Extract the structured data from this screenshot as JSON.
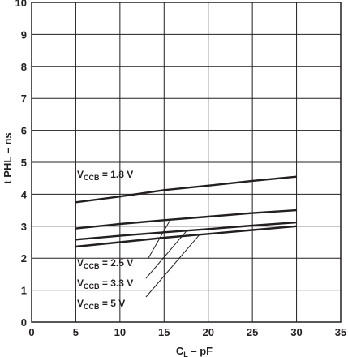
{
  "chart_data": {
    "type": "line",
    "xlabel": "C",
    "xlabel_sub": "L",
    "xlabel_suffix": " – pF",
    "ylabel": "t PHL – ns",
    "xlim": [
      0,
      35
    ],
    "ylim": [
      0,
      10
    ],
    "xticks": [
      "0",
      "5",
      "10",
      "15",
      "20",
      "25",
      "30",
      "35"
    ],
    "yticks": [
      "0",
      "1",
      "2",
      "3",
      "4",
      "5",
      "6",
      "7",
      "8",
      "9",
      "10"
    ],
    "grid": true,
    "series": [
      {
        "name": "V_CCB = 1.8 V",
        "x": [
          5,
          10,
          15,
          20,
          25,
          30
        ],
        "y": [
          3.75,
          3.93,
          4.13,
          4.27,
          4.42,
          4.55
        ],
        "label": {
          "main": "V",
          "sub": "CCB",
          "rest": " = 1.8 V"
        }
      },
      {
        "name": "V_CCB = 2.5 V",
        "x": [
          5,
          10,
          15,
          20,
          25,
          30
        ],
        "y": [
          2.93,
          3.07,
          3.19,
          3.3,
          3.41,
          3.5
        ],
        "label": {
          "main": "V",
          "sub": "CCB",
          "rest": " = 2.5 V"
        }
      },
      {
        "name": "V_CCB = 3.3 V",
        "x": [
          5,
          10,
          15,
          20,
          25,
          30
        ],
        "y": [
          2.58,
          2.7,
          2.81,
          2.91,
          3.02,
          3.12
        ],
        "label": {
          "main": "V",
          "sub": "CCB",
          "rest": " = 3.3 V"
        }
      },
      {
        "name": "V_CCB = 5 V",
        "x": [
          5,
          10,
          15,
          20,
          25,
          30
        ],
        "y": [
          2.36,
          2.5,
          2.64,
          2.76,
          2.88,
          3.0
        ],
        "label": {
          "main": "V",
          "sub": "CCB",
          "rest": " = 5 V"
        }
      }
    ]
  },
  "colors": {
    "grid": "#231f20",
    "line": "#231f20"
  }
}
